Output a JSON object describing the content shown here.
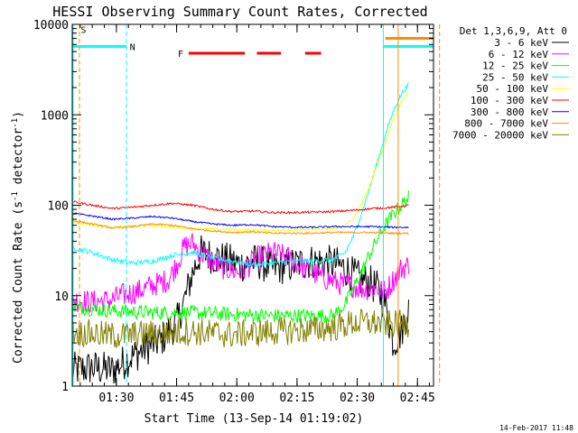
{
  "chart_data": {
    "type": "line",
    "title": "HESSI Observing Summary Count Rates, Corrected",
    "xlabel": "Start Time (13-Sep-14 01:19:02)",
    "ylabel": "Corrected Count Rate (s⁻¹ detector⁻¹)",
    "ylabel_parts": {
      "main": "Corrected Count Rate (s",
      "exp1": "-1",
      "mid": " detector",
      "exp2": "-1",
      "end": ")"
    },
    "footer_date": "14-Feb-2017 11:48",
    "x_range_minutes": [
      0,
      90
    ],
    "y_scale": "log",
    "ylim": [
      1,
      10000
    ],
    "x_ticks": [
      {
        "minute": 11,
        "label": "01:30"
      },
      {
        "minute": 26,
        "label": "01:45"
      },
      {
        "minute": 41,
        "label": "02:00"
      },
      {
        "minute": 56,
        "label": "02:15"
      },
      {
        "minute": 71,
        "label": "02:30"
      },
      {
        "minute": 86,
        "label": "02:45"
      }
    ],
    "x_minor_tick_step": 3,
    "y_ticks": [
      {
        "value": 1,
        "label": "1"
      },
      {
        "value": 10,
        "label": "10"
      },
      {
        "value": 100,
        "label": "100"
      },
      {
        "value": 1000,
        "label": "1000"
      },
      {
        "value": 10000,
        "label": "10000"
      }
    ],
    "legend": {
      "placement": "right",
      "header": "Det 1,3,6,9, Att 0"
    },
    "series": [
      {
        "name": "3 - 6 keV",
        "color": "#000000",
        "noise": 0.45,
        "points": [
          [
            0,
            1.5
          ],
          [
            5,
            1.6
          ],
          [
            10,
            1.5
          ],
          [
            14,
            2
          ],
          [
            18,
            2.6
          ],
          [
            22,
            3.2
          ],
          [
            26,
            5
          ],
          [
            28,
            9
          ],
          [
            30,
            18
          ],
          [
            32,
            30
          ],
          [
            34,
            28
          ],
          [
            38,
            25
          ],
          [
            42,
            22
          ],
          [
            46,
            24
          ],
          [
            50,
            20
          ],
          [
            55,
            22
          ],
          [
            60,
            24
          ],
          [
            64,
            23
          ],
          [
            66,
            22
          ],
          [
            68,
            20
          ],
          [
            70,
            17
          ],
          [
            72,
            15
          ],
          [
            74,
            14
          ],
          [
            76,
            12
          ],
          [
            78,
            8
          ],
          [
            80,
            3
          ],
          [
            82,
            4
          ],
          [
            84,
            8
          ]
        ]
      },
      {
        "name": "6 - 12 keV",
        "color": "#ff00ff",
        "noise": 0.3,
        "points": [
          [
            0,
            9
          ],
          [
            5,
            8.5
          ],
          [
            10,
            9
          ],
          [
            12,
            10
          ],
          [
            16,
            11
          ],
          [
            20,
            13
          ],
          [
            24,
            15
          ],
          [
            26,
            22
          ],
          [
            28,
            35
          ],
          [
            30,
            38
          ],
          [
            32,
            30
          ],
          [
            34,
            26
          ],
          [
            36,
            22
          ],
          [
            38,
            20
          ],
          [
            42,
            18
          ],
          [
            46,
            26
          ],
          [
            50,
            30
          ],
          [
            54,
            26
          ],
          [
            58,
            20
          ],
          [
            60,
            18
          ],
          [
            62,
            16
          ],
          [
            64,
            15
          ],
          [
            66,
            14
          ],
          [
            68,
            13
          ],
          [
            70,
            13
          ],
          [
            72,
            12
          ],
          [
            74,
            12
          ],
          [
            76,
            12
          ],
          [
            78,
            11
          ],
          [
            80,
            15
          ],
          [
            82,
            20
          ],
          [
            84,
            22
          ]
        ]
      },
      {
        "name": "12 - 25 keV",
        "color": "#00ff00",
        "noise": 0.18,
        "points": [
          [
            0,
            7.5
          ],
          [
            10,
            6.8
          ],
          [
            20,
            6.5
          ],
          [
            30,
            6.5
          ],
          [
            40,
            6.2
          ],
          [
            50,
            6
          ],
          [
            60,
            6
          ],
          [
            65,
            6
          ],
          [
            68,
            8
          ],
          [
            70,
            12
          ],
          [
            72,
            18
          ],
          [
            74,
            28
          ],
          [
            76,
            42
          ],
          [
            78,
            60
          ],
          [
            80,
            80
          ],
          [
            82,
            100
          ],
          [
            84,
            125
          ]
        ]
      },
      {
        "name": "25 - 50 keV",
        "color": "#00ffff",
        "noise": 0.06,
        "points": [
          [
            0,
            34
          ],
          [
            5,
            30
          ],
          [
            10,
            25
          ],
          [
            15,
            23
          ],
          [
            20,
            24
          ],
          [
            25,
            28
          ],
          [
            30,
            30
          ],
          [
            35,
            26
          ],
          [
            40,
            24
          ],
          [
            45,
            22
          ],
          [
            50,
            23
          ],
          [
            55,
            24
          ],
          [
            60,
            24
          ],
          [
            65,
            25
          ],
          [
            68,
            30
          ],
          [
            70,
            45
          ],
          [
            72,
            80
          ],
          [
            74,
            150
          ],
          [
            76,
            300
          ],
          [
            78,
            600
          ],
          [
            80,
            1100
          ],
          [
            82,
            1700
          ],
          [
            84,
            2200
          ]
        ]
      },
      {
        "name": "50 - 100 keV",
        "color": "#ffff00",
        "noise": 0.03,
        "points": [
          [
            0,
            65
          ],
          [
            10,
            57
          ],
          [
            20,
            60
          ],
          [
            30,
            55
          ],
          [
            40,
            54
          ],
          [
            50,
            53
          ],
          [
            60,
            54
          ],
          [
            65,
            55
          ],
          [
            68,
            60
          ],
          [
            70,
            70
          ],
          [
            72,
            100
          ],
          [
            74,
            160
          ],
          [
            76,
            280
          ],
          [
            78,
            500
          ],
          [
            80,
            900
          ],
          [
            82,
            1400
          ],
          [
            84,
            1800
          ]
        ]
      },
      {
        "name": "100 - 300 keV",
        "color": "#ff0000",
        "noise": 0.025,
        "points": [
          [
            0,
            110
          ],
          [
            5,
            100
          ],
          [
            10,
            92
          ],
          [
            15,
            95
          ],
          [
            20,
            100
          ],
          [
            25,
            105
          ],
          [
            30,
            100
          ],
          [
            35,
            90
          ],
          [
            40,
            85
          ],
          [
            45,
            86
          ],
          [
            50,
            83
          ],
          [
            55,
            83
          ],
          [
            60,
            84
          ],
          [
            65,
            85
          ],
          [
            70,
            88
          ],
          [
            75,
            92
          ],
          [
            80,
            95
          ],
          [
            84,
            100
          ]
        ]
      },
      {
        "name": "300 - 800 keV",
        "color": "#0000ff",
        "noise": 0.02,
        "points": [
          [
            0,
            82
          ],
          [
            5,
            76
          ],
          [
            10,
            70
          ],
          [
            15,
            72
          ],
          [
            20,
            75
          ],
          [
            25,
            72
          ],
          [
            30,
            66
          ],
          [
            35,
            62
          ],
          [
            40,
            60
          ],
          [
            45,
            61
          ],
          [
            50,
            58
          ],
          [
            55,
            57
          ],
          [
            60,
            57
          ],
          [
            65,
            58
          ],
          [
            70,
            58
          ],
          [
            75,
            58
          ],
          [
            80,
            57
          ],
          [
            84,
            57
          ]
        ]
      },
      {
        "name": "800 - 7000 keV",
        "color": "#ff8c00",
        "noise": 0.02,
        "points": [
          [
            0,
            68
          ],
          [
            5,
            62
          ],
          [
            10,
            56
          ],
          [
            15,
            58
          ],
          [
            20,
            62
          ],
          [
            25,
            60
          ],
          [
            30,
            55
          ],
          [
            35,
            52
          ],
          [
            40,
            50
          ],
          [
            45,
            51
          ],
          [
            50,
            49
          ],
          [
            55,
            49
          ],
          [
            60,
            49
          ],
          [
            65,
            50
          ],
          [
            70,
            50
          ],
          [
            75,
            50
          ],
          [
            80,
            49
          ],
          [
            84,
            49
          ]
        ]
      },
      {
        "name": "7000 - 20000 keV",
        "color": "#808000",
        "noise": 0.35,
        "points": [
          [
            0,
            4
          ],
          [
            10,
            3.6
          ],
          [
            20,
            3.8
          ],
          [
            30,
            4
          ],
          [
            40,
            3.7
          ],
          [
            50,
            4
          ],
          [
            60,
            4.2
          ],
          [
            66,
            4.5
          ],
          [
            70,
            5
          ],
          [
            76,
            5
          ],
          [
            80,
            4.8
          ],
          [
            84,
            5
          ]
        ]
      }
    ],
    "state_bars": [
      {
        "label": "S",
        "color": "#ff8c00",
        "segments": [],
        "label_minute": 2.8,
        "y_value": 8800
      },
      {
        "label": "N",
        "color": "#00ffff",
        "segments": [
          [
            0,
            13.5
          ],
          [
            77.5,
            90
          ]
        ],
        "label_minute": 15,
        "y_value": 5700
      },
      {
        "label": "F",
        "color": "#ff0000",
        "segments": [
          [
            29,
            43
          ],
          [
            46,
            52
          ],
          [
            58,
            62
          ]
        ],
        "label_minute": 27,
        "y_value": 4800
      },
      {
        "label": "",
        "color": "#ff8c00",
        "segments": [
          [
            78,
            90
          ]
        ],
        "label_minute": null,
        "y_value": 7000
      }
    ],
    "vertical_markers": [
      {
        "minute": 0.2,
        "color": "#00ffff",
        "style": "solid"
      },
      {
        "minute": 1.8,
        "color": "#ff8c00",
        "style": "dashed"
      },
      {
        "minute": 13.5,
        "color": "#00ffff",
        "style": "dashed"
      },
      {
        "minute": 77.5,
        "color": "#00ffff",
        "style": "solid"
      },
      {
        "minute": 81.2,
        "color": "#ff8c00",
        "style": "solid"
      },
      {
        "minute": 91.5,
        "color": "#ff8c00",
        "style": "dashed"
      }
    ]
  }
}
